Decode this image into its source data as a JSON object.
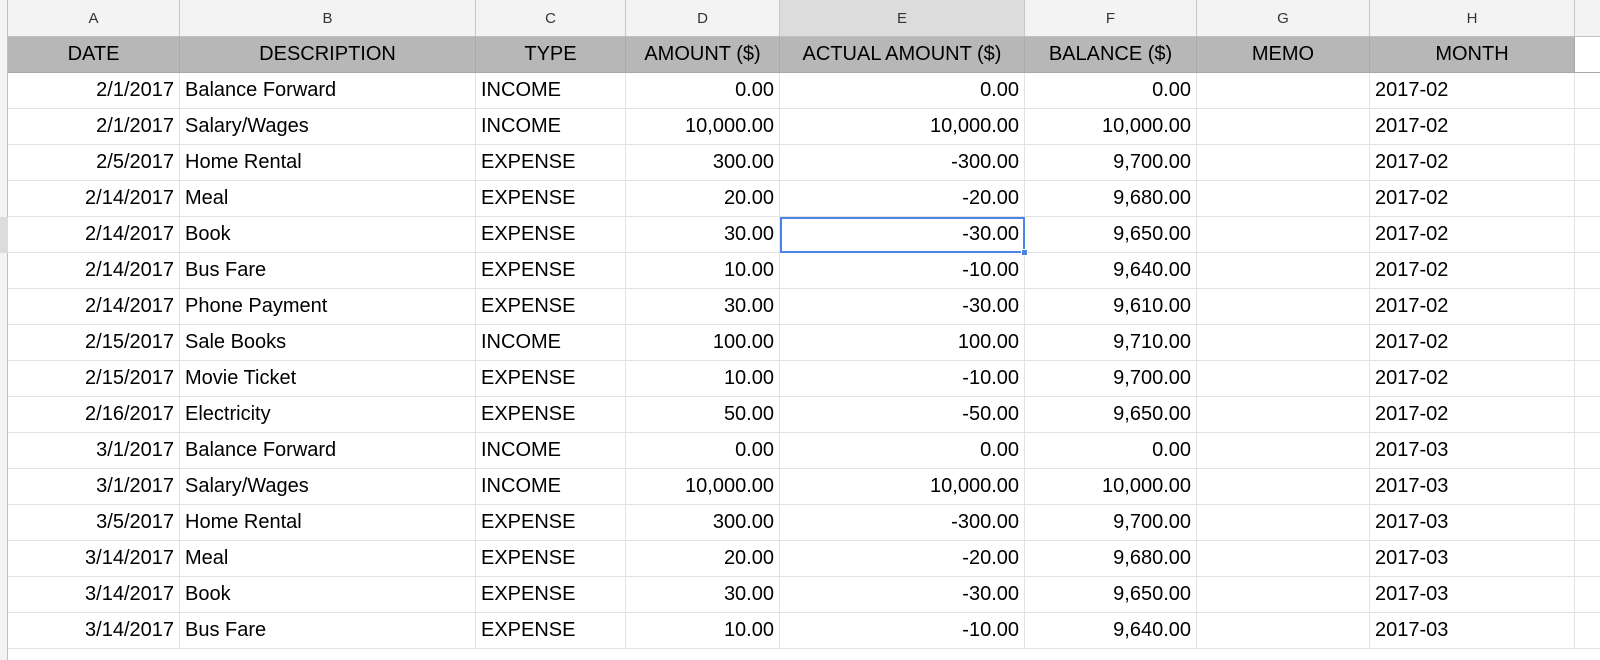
{
  "column_letters": [
    "A",
    "B",
    "C",
    "D",
    "E",
    "F",
    "G",
    "H"
  ],
  "selected_cell": "E5",
  "headers": [
    "DATE",
    "DESCRIPTION",
    "TYPE",
    "AMOUNT ($)",
    "ACTUAL AMOUNT ($)",
    "BALANCE ($)",
    "MEMO",
    "MONTH"
  ],
  "rows": [
    [
      "2/1/2017",
      "Balance Forward",
      "INCOME",
      "0.00",
      "0.00",
      "0.00",
      "",
      "2017-02"
    ],
    [
      "2/1/2017",
      "Salary/Wages",
      "INCOME",
      "10,000.00",
      "10,000.00",
      "10,000.00",
      "",
      "2017-02"
    ],
    [
      "2/5/2017",
      "Home Rental",
      "EXPENSE",
      "300.00",
      "-300.00",
      "9,700.00",
      "",
      "2017-02"
    ],
    [
      "2/14/2017",
      "Meal",
      "EXPENSE",
      "20.00",
      "-20.00",
      "9,680.00",
      "",
      "2017-02"
    ],
    [
      "2/14/2017",
      "Book",
      "EXPENSE",
      "30.00",
      "-30.00",
      "9,650.00",
      "",
      "2017-02"
    ],
    [
      "2/14/2017",
      "Bus Fare",
      "EXPENSE",
      "10.00",
      "-10.00",
      "9,640.00",
      "",
      "2017-02"
    ],
    [
      "2/14/2017",
      "Phone Payment",
      "EXPENSE",
      "30.00",
      "-30.00",
      "9,610.00",
      "",
      "2017-02"
    ],
    [
      "2/15/2017",
      "Sale Books",
      "INCOME",
      "100.00",
      "100.00",
      "9,710.00",
      "",
      "2017-02"
    ],
    [
      "2/15/2017",
      "Movie Ticket",
      "EXPENSE",
      "10.00",
      "-10.00",
      "9,700.00",
      "",
      "2017-02"
    ],
    [
      "2/16/2017",
      "Electricity",
      "EXPENSE",
      "50.00",
      "-50.00",
      "9,650.00",
      "",
      "2017-02"
    ],
    [
      "3/1/2017",
      "Balance Forward",
      "INCOME",
      "0.00",
      "0.00",
      "0.00",
      "",
      "2017-03"
    ],
    [
      "3/1/2017",
      "Salary/Wages",
      "INCOME",
      "10,000.00",
      "10,000.00",
      "10,000.00",
      "",
      "2017-03"
    ],
    [
      "3/5/2017",
      "Home Rental",
      "EXPENSE",
      "300.00",
      "-300.00",
      "9,700.00",
      "",
      "2017-03"
    ],
    [
      "3/14/2017",
      "Meal",
      "EXPENSE",
      "20.00",
      "-20.00",
      "9,680.00",
      "",
      "2017-03"
    ],
    [
      "3/14/2017",
      "Book",
      "EXPENSE",
      "30.00",
      "-30.00",
      "9,650.00",
      "",
      "2017-03"
    ],
    [
      "3/14/2017",
      "Bus Fare",
      "EXPENSE",
      "10.00",
      "-10.00",
      "9,640.00",
      "",
      "2017-03"
    ]
  ],
  "colors": {
    "header_fill": "#b7b7b7",
    "selection": "#4a86e8"
  }
}
